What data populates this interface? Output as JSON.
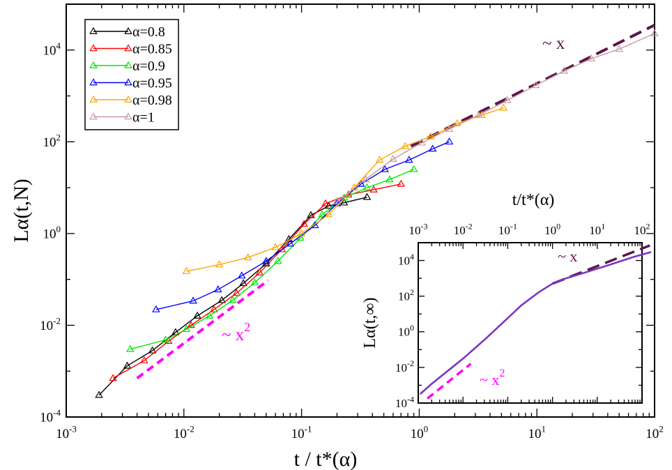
{
  "chart_data": [
    {
      "type": "line",
      "scale": "log-log",
      "xlabel": "t / t*(α)",
      "ylabel": "Lα(t,N)",
      "xlim": [
        0.001,
        100
      ],
      "ylim": [
        0.0001,
        100000
      ],
      "xticks": [
        "10-3",
        "10-2",
        "10-1",
        "100",
        "101",
        "102"
      ],
      "yticks": [
        "10-4",
        "10-2",
        "100",
        "102",
        "104"
      ],
      "legend_position": "top-left",
      "series": [
        {
          "name": "α=0.8",
          "color": "#000000",
          "marker": "triangle",
          "x": [
            0.0019,
            0.0033,
            0.0054,
            0.0085,
            0.013,
            0.021,
            0.032,
            0.05,
            0.078,
            0.12,
            0.17,
            0.23,
            0.36
          ],
          "y": [
            0.0003,
            0.0013,
            0.0028,
            0.007,
            0.016,
            0.035,
            0.082,
            0.22,
            0.75,
            2.5,
            4.0,
            4.7,
            6.2
          ]
        },
        {
          "name": "α=0.85",
          "color": "#ff0000",
          "marker": "triangle",
          "x": [
            0.0025,
            0.0046,
            0.0074,
            0.0115,
            0.018,
            0.028,
            0.044,
            0.068,
            0.105,
            0.16,
            0.25,
            0.41,
            0.7
          ],
          "y": [
            0.0007,
            0.0017,
            0.0045,
            0.01,
            0.022,
            0.05,
            0.14,
            0.45,
            1.6,
            4.5,
            7.0,
            9.0,
            12.0
          ]
        },
        {
          "name": "α=0.9",
          "color": "#00e600",
          "marker": "triangle",
          "x": [
            0.0035,
            0.007,
            0.0105,
            0.0165,
            0.026,
            0.04,
            0.063,
            0.098,
            0.15,
            0.23,
            0.36,
            0.56,
            0.9
          ],
          "y": [
            0.003,
            0.0048,
            0.0082,
            0.016,
            0.035,
            0.085,
            0.25,
            0.8,
            2.6,
            6.0,
            10.0,
            15.0,
            25.0
          ]
        },
        {
          "name": "α=0.95",
          "color": "#0000ff",
          "marker": "triangle",
          "x": [
            0.0058,
            0.012,
            0.0195,
            0.031,
            0.05,
            0.08,
            0.13,
            0.2,
            0.32,
            0.51,
            0.82,
            1.3,
            1.8
          ],
          "y": [
            0.022,
            0.034,
            0.06,
            0.12,
            0.25,
            0.6,
            1.5,
            4.5,
            12.0,
            25.0,
            40.0,
            70.0,
            100.0
          ]
        },
        {
          "name": "α=0.98",
          "color": "#ffa500",
          "marker": "triangle",
          "x": [
            0.0105,
            0.02,
            0.035,
            0.06,
            0.1,
            0.17,
            0.28,
            0.46,
            0.76,
            1.25,
            2.1,
            3.4,
            5.2
          ],
          "y": [
            0.15,
            0.21,
            0.3,
            0.5,
            1.0,
            2.6,
            10.0,
            40.0,
            80.0,
            130.0,
            250.0,
            380.0,
            550.0
          ]
        },
        {
          "name": "α=1",
          "color": "#c89a9a",
          "marker": "triangle",
          "x": [
            0.2,
            0.35,
            0.6,
            1.05,
            1.8,
            3.2,
            5.6,
            9.8,
            17.0,
            29.0,
            50.0,
            100.0
          ],
          "y": [
            5.0,
            15.0,
            42.0,
            95.0,
            190.0,
            380.0,
            800.0,
            1700.0,
            3500.0,
            6500.0,
            10500.0,
            23000.0
          ]
        }
      ],
      "guides": [
        {
          "label": "~ x",
          "color": "#5c1448",
          "dash": "long",
          "x": [
            0.85,
            100
          ],
          "y": [
            80,
            35000
          ]
        },
        {
          "label": "~ x",
          "exp": "2",
          "color": "#ff00ff",
          "dash": "short",
          "x": [
            0.004,
            0.052
          ],
          "y": [
            0.0007,
            0.095
          ]
        }
      ]
    },
    {
      "type": "line",
      "scale": "log-log",
      "position": "inset-bottom-right",
      "xlabel": "t/t*(α)",
      "ylabel": "Lα(t,∞)",
      "xlim": [
        0.001,
        100
      ],
      "ylim": [
        0.0001,
        100000
      ],
      "xticks": [
        "10-3",
        "10-2",
        "10-1",
        "100",
        "101",
        "102"
      ],
      "yticks": [
        "10-4",
        "10-2",
        "100",
        "102",
        "104"
      ],
      "series": [
        {
          "color": "#7a35c4",
          "x": [
            0.0011,
            0.002,
            0.004,
            0.01,
            0.03,
            0.08,
            0.2,
            0.5,
            1,
            2,
            5,
            20,
            60,
            160
          ],
          "y": [
            0.00032,
            0.0012,
            0.0049,
            0.031,
            0.35,
            3.5,
            30,
            170,
            500,
            1000,
            2000,
            6000,
            15000,
            30000
          ]
        }
      ],
      "guides": [
        {
          "label": "~ x",
          "color": "#5c1448",
          "dash": "long",
          "x": [
            1,
            150
          ],
          "y": [
            500,
            70000
          ]
        },
        {
          "label": "~ x",
          "exp": "2",
          "color": "#ff00ff",
          "dash": "short",
          "x": [
            0.0016,
            0.015
          ],
          "y": [
            0.00018,
            0.016
          ]
        }
      ]
    }
  ]
}
